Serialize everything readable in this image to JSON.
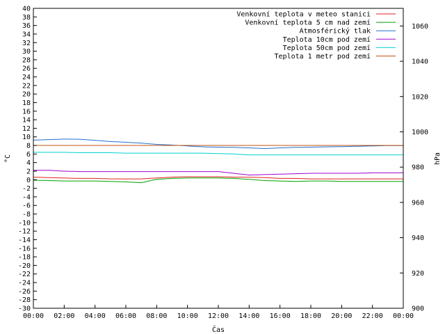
{
  "chart_data": {
    "type": "line",
    "xlabel": "Čas",
    "ylabel_left": "°C",
    "ylabel_right": "hPa",
    "x_ticks": [
      "00:00",
      "02:00",
      "04:00",
      "06:00",
      "08:00",
      "10:00",
      "12:00",
      "14:00",
      "16:00",
      "18:00",
      "20:00",
      "22:00",
      "00:00"
    ],
    "x_hours": [
      0,
      1,
      2,
      3,
      4,
      5,
      6,
      7,
      8,
      9,
      10,
      11,
      12,
      13,
      14,
      15,
      16,
      17,
      18,
      19,
      20,
      21,
      22,
      23,
      24
    ],
    "ylim_left": [
      -30,
      40
    ],
    "ylim_right": [
      900,
      1070
    ],
    "y_ticks_left": [
      40,
      38,
      36,
      34,
      32,
      30,
      28,
      26,
      24,
      22,
      20,
      18,
      16,
      14,
      12,
      10,
      8,
      6,
      4,
      2,
      0,
      -2,
      -4,
      -6,
      -8,
      -10,
      -12,
      -14,
      -16,
      -18,
      -20,
      -22,
      -24,
      -26,
      -28,
      -30
    ],
    "y_ticks_right": [
      1060,
      1040,
      1020,
      1000,
      980,
      960,
      940,
      920,
      900
    ],
    "legend_position": "top-right",
    "colors": {
      "red": "#e0201e",
      "green": "#00a000",
      "blue": "#1f6fd0",
      "magenta": "#a000d0",
      "cyan": "#00d0d0",
      "brown": "#c05010"
    },
    "series": [
      {
        "name": "Venkovní teplota v meteo stanici",
        "color": "red",
        "axis": "left",
        "values": [
          0.6,
          0.5,
          0.4,
          0.3,
          0.3,
          0.2,
          0.2,
          0.2,
          0.4,
          0.6,
          0.7,
          0.7,
          0.7,
          0.6,
          0.6,
          0.5,
          0.3,
          0.3,
          0.2,
          0.2,
          0.2,
          0.2,
          0.2,
          0.2,
          0.2
        ]
      },
      {
        "name": "Venkovní teplota 5 cm nad zemí",
        "color": "green",
        "axis": "left",
        "values": [
          -0.1,
          -0.2,
          -0.3,
          -0.3,
          -0.3,
          -0.4,
          -0.5,
          -0.7,
          0.1,
          0.3,
          0.4,
          0.4,
          0.4,
          0.3,
          0.1,
          -0.2,
          -0.3,
          -0.4,
          -0.3,
          -0.3,
          -0.4,
          -0.4,
          -0.4,
          -0.4,
          -0.4
        ]
      },
      {
        "name": "Atmosférický tlak",
        "color": "blue",
        "axis": "right",
        "values": [
          995.3,
          995.6,
          995.9,
          995.8,
          995.2,
          994.5,
          994.1,
          993.6,
          992.9,
          992.5,
          992.0,
          991.5,
          991.3,
          991.2,
          990.9,
          990.5,
          990.9,
          991.2,
          991.3,
          991.5,
          991.6,
          991.8,
          992.0,
          992.2,
          992.2
        ]
      },
      {
        "name": "Teplota 10cm pod zemí",
        "color": "magenta",
        "axis": "left",
        "values": [
          2.2,
          2.2,
          2.0,
          1.9,
          1.9,
          1.9,
          1.9,
          1.9,
          1.9,
          1.9,
          1.9,
          1.9,
          1.9,
          1.5,
          1.1,
          1.2,
          1.3,
          1.4,
          1.5,
          1.5,
          1.5,
          1.5,
          1.6,
          1.6,
          1.6
        ]
      },
      {
        "name": "Teplota 50cm pod zemí",
        "color": "cyan",
        "axis": "left",
        "values": [
          6.4,
          6.4,
          6.4,
          6.3,
          6.3,
          6.3,
          6.2,
          6.2,
          6.2,
          6.2,
          6.2,
          6.2,
          6.1,
          6.0,
          5.8,
          5.8,
          5.8,
          5.8,
          5.8,
          5.8,
          5.8,
          5.8,
          5.8,
          5.8,
          5.8
        ]
      },
      {
        "name": "Teplota 1 metr pod zemí",
        "color": "brown",
        "axis": "left",
        "values": [
          8.0,
          8.0,
          8.0,
          8.0,
          8.0,
          8.0,
          8.0,
          8.0,
          8.0,
          8.0,
          8.0,
          8.0,
          8.0,
          8.0,
          8.0,
          8.0,
          8.0,
          8.0,
          8.0,
          8.0,
          8.0,
          8.0,
          8.0,
          8.0,
          8.0
        ]
      }
    ]
  }
}
